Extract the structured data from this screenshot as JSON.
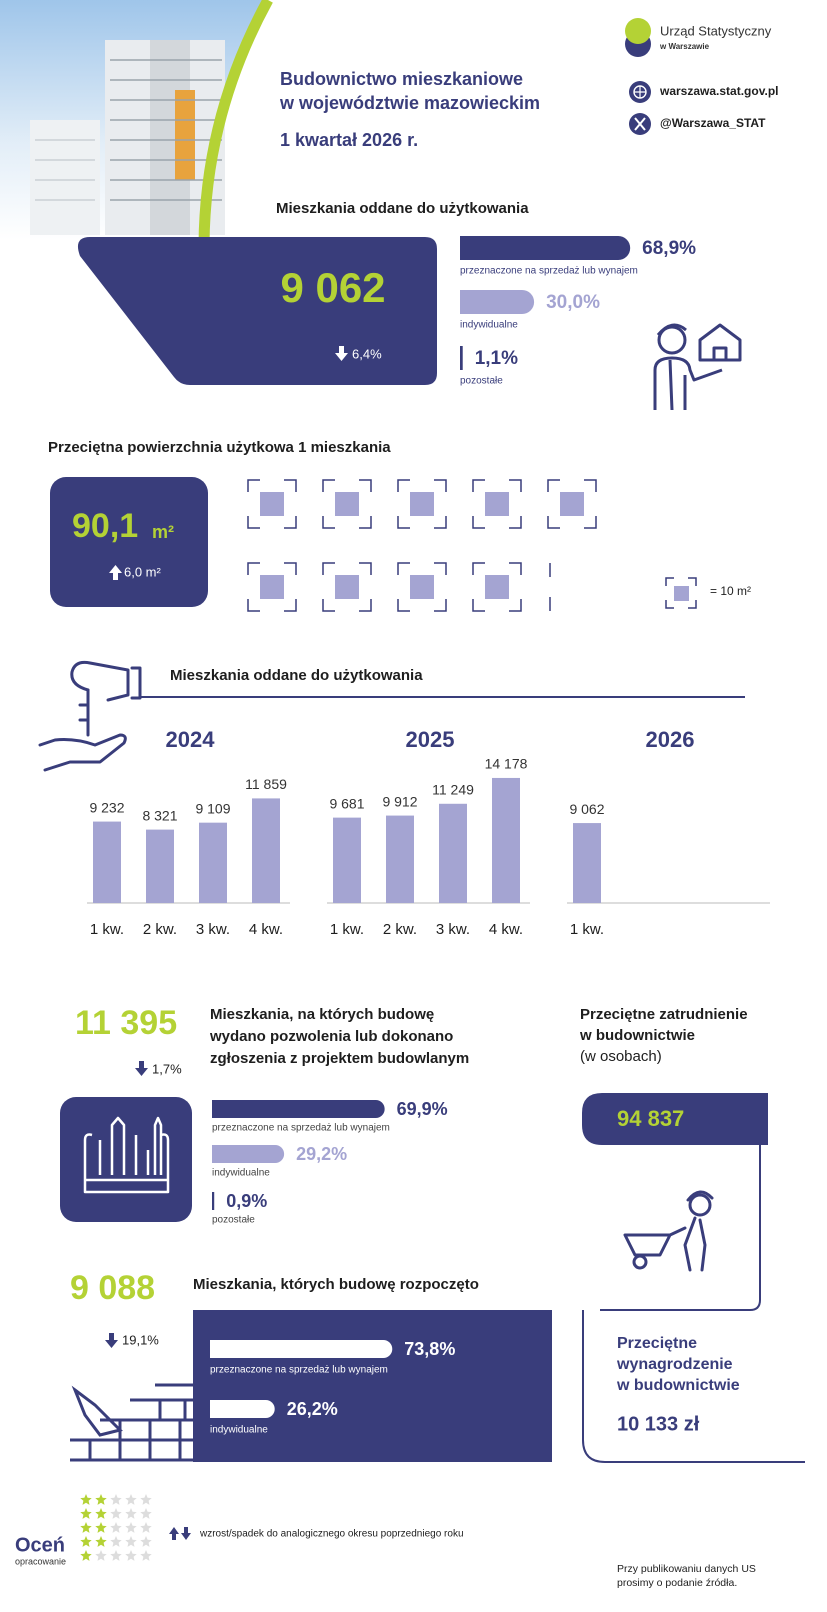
{
  "header": {
    "title": [
      "Budownictwo mieszkaniowe",
      "w województwie mazowieckim"
    ],
    "period": "1 kwartał 2026 r.",
    "institution": [
      "Urząd Statystyczny",
      "w Warszawie"
    ],
    "website": "warszawa.stat.gov.pl",
    "twitter": "@Warszawa_STAT"
  },
  "completed": {
    "title": "Mieszkania oddane do użytkowania",
    "total": "9 062",
    "change": "6,4%",
    "shares": [
      {
        "label": "przeznaczone na sprzedaż lub wynajem",
        "value": 68.9,
        "value_label": "68,9%"
      },
      {
        "label": "indywidualne",
        "value": 30.0,
        "value_label": "30,0%"
      },
      {
        "label": "pozostałe",
        "value": 1.1,
        "value_label": "1,1%"
      }
    ]
  },
  "area": {
    "title": "Przeciętna powierzchnia użytkowa 1 mieszkania",
    "value": "90,1",
    "unit": "m²",
    "change": "6,0 m²",
    "legend": "= 10 m²"
  },
  "chart": {
    "title": "Mieszkania oddane do użytkowania",
    "groups": [
      {
        "year": "2024",
        "categories": [
          "1 kw.",
          "2 kw.",
          "3 kw.",
          "4 kw."
        ],
        "values": [
          9232,
          8321,
          9109,
          11859
        ],
        "value_labels": [
          "9 232",
          "8 321",
          "9 109",
          "11 859"
        ]
      },
      {
        "year": "2025",
        "categories": [
          "1 kw.",
          "2 kw.",
          "3 kw.",
          "4 kw."
        ],
        "values": [
          9681,
          9912,
          11249,
          14178
        ],
        "value_labels": [
          "9 681",
          "9 912",
          "11 249",
          "14 178"
        ]
      },
      {
        "year": "2026",
        "categories": [
          "1 kw."
        ],
        "values": [
          9062
        ],
        "value_labels": [
          "9 062"
        ]
      }
    ]
  },
  "permits": {
    "total": "11 395",
    "change": "1,7%",
    "title": [
      "Mieszkania, na których budowę",
      "wydano pozwolenia lub dokonano",
      "zgłoszenia z projektem budowlanym"
    ],
    "shares": [
      {
        "label": "przeznaczone na sprzedaż lub wynajem",
        "value": 69.9,
        "value_label": "69,9%"
      },
      {
        "label": "indywidualne",
        "value": 29.2,
        "value_label": "29,2%"
      },
      {
        "label": "pozostałe",
        "value": 0.9,
        "value_label": "0,9%"
      }
    ]
  },
  "employment": {
    "title": [
      "Przeciętne zatrudnienie",
      "w budownictwie"
    ],
    "subtitle": "(w osobach)",
    "value": "94 837"
  },
  "started": {
    "total": "9 088",
    "change": "19,1%",
    "title": "Mieszkania, których budowę rozpoczęto",
    "shares": [
      {
        "label": "przeznaczone na sprzedaż lub wynajem",
        "value": 73.8,
        "value_label": "73,8%"
      },
      {
        "label": "indywidualne",
        "value": 26.2,
        "value_label": "26,2%"
      }
    ]
  },
  "wages": {
    "title": [
      "Przeciętne",
      "wynagrodzenie",
      "w budownictwie"
    ],
    "value": "10 133 zł"
  },
  "footer": {
    "rate": "Oceń",
    "rate_sub": "opracowanie",
    "legend": "wzrost/spadek do analogicznego okresu poprzedniego roku",
    "source_note": [
      "Przy publikowaniu danych US",
      "prosimy o podanie źródła."
    ]
  }
}
